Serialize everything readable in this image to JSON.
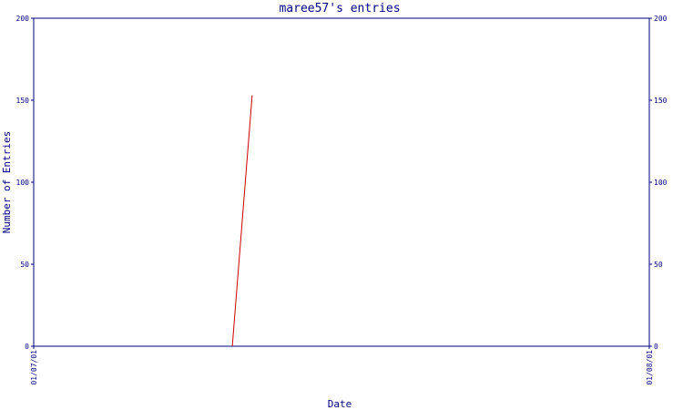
{
  "chart_data": {
    "type": "line",
    "title": "maree57's entries",
    "xlabel": "Date",
    "ylabel": "Number of Entries",
    "x_ticks": [
      "01/07/01",
      "01/08/01"
    ],
    "y_ticks": [
      0,
      50,
      100,
      150,
      200
    ],
    "ylim": [
      0,
      200
    ],
    "grid": false,
    "series": [
      {
        "points": [
          {
            "x": "2001-07-11",
            "y": 0
          },
          {
            "x": "2001-07-12",
            "y": 153
          }
        ]
      }
    ],
    "xlim": [
      "2001-07-01",
      "2001-08-01"
    ],
    "colors": {
      "axis": "#000080",
      "line": "#cc0000"
    }
  }
}
